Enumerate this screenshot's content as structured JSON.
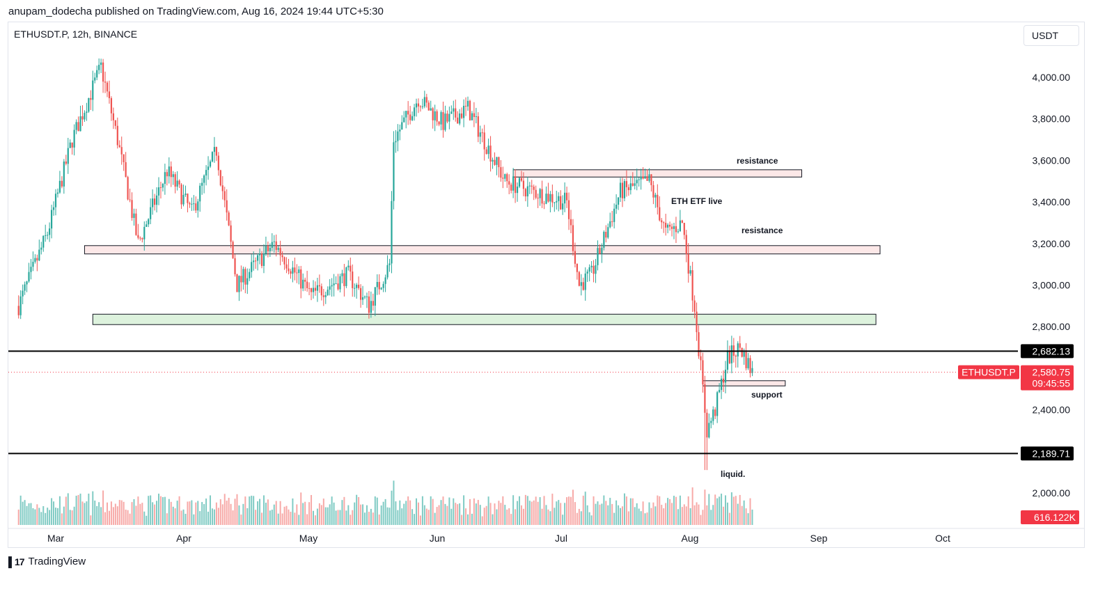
{
  "header": "anupam_dodecha published on TradingView.com, Aug 16, 2024 19:44 UTC+5:30",
  "symbol_line": "ETHUSDT.P, 12h, BINANCE",
  "currency": "USDT",
  "footer_brand": "TradingView",
  "colors": {
    "up": "#26a69a",
    "down": "#ef5350",
    "vol_up": "#80cbc4",
    "vol_down": "#f7a9a7",
    "tag_red": "#f23645"
  },
  "chart_data": {
    "type": "candlestick",
    "symbol": "ETHUSDT.P",
    "timeframe": "12h",
    "exchange": "BINANCE",
    "y_axis": {
      "ticks": [
        2000,
        2400,
        2800,
        3000,
        3200,
        3400,
        3600,
        3800,
        4000
      ],
      "tick_labels": [
        "2,000.00",
        "2,400.00",
        "2,800.00",
        "3,000.00",
        "3,200.00",
        "3,400.00",
        "3,600.00",
        "3,800.00",
        "4,000.00"
      ]
    },
    "x_axis": {
      "ticks": [
        "Mar",
        "Apr",
        "May",
        "Jun",
        "Jul",
        "Aug",
        "Sep",
        "Oct"
      ]
    },
    "series_close_anchors": [
      {
        "date": "2024-02-20",
        "close": 2900
      },
      {
        "date": "2024-02-27",
        "close": 3250
      },
      {
        "date": "2024-03-04",
        "close": 3700
      },
      {
        "date": "2024-03-11",
        "close": 4050
      },
      {
        "date": "2024-03-15",
        "close": 3700
      },
      {
        "date": "2024-03-20",
        "close": 3200
      },
      {
        "date": "2024-03-27",
        "close": 3550
      },
      {
        "date": "2024-04-02",
        "close": 3350
      },
      {
        "date": "2024-04-08",
        "close": 3650
      },
      {
        "date": "2024-04-13",
        "close": 3000
      },
      {
        "date": "2024-04-22",
        "close": 3200
      },
      {
        "date": "2024-05-01",
        "close": 2950
      },
      {
        "date": "2024-05-10",
        "close": 3050
      },
      {
        "date": "2024-05-15",
        "close": 2900
      },
      {
        "date": "2024-05-20",
        "close": 3100
      },
      {
        "date": "2024-05-21",
        "close": 3700
      },
      {
        "date": "2024-05-27",
        "close": 3900
      },
      {
        "date": "2024-06-02",
        "close": 3780
      },
      {
        "date": "2024-06-08",
        "close": 3850
      },
      {
        "date": "2024-06-17",
        "close": 3500
      },
      {
        "date": "2024-06-24",
        "close": 3450
      },
      {
        "date": "2024-07-02",
        "close": 3400
      },
      {
        "date": "2024-07-05",
        "close": 3000
      },
      {
        "date": "2024-07-08",
        "close": 3050
      },
      {
        "date": "2024-07-15",
        "close": 3450
      },
      {
        "date": "2024-07-22",
        "close": 3500
      },
      {
        "date": "2024-07-26",
        "close": 3250
      },
      {
        "date": "2024-07-30",
        "close": 3300
      },
      {
        "date": "2024-08-02",
        "close": 2900
      },
      {
        "date": "2024-08-05",
        "close": 2300
      },
      {
        "date": "2024-08-07",
        "close": 2400
      },
      {
        "date": "2024-08-10",
        "close": 2650
      },
      {
        "date": "2024-08-13",
        "close": 2700
      },
      {
        "date": "2024-08-16",
        "close": 2580.75
      }
    ],
    "low_wick": {
      "date": "2024-08-05",
      "value": 2110
    },
    "zones": [
      {
        "label": "resistance",
        "from": 3520,
        "to": 3555,
        "start": "2024-06-19",
        "end": "2024-08-28",
        "fill": "#fce8e8"
      },
      {
        "label": "resistance",
        "from": 3150,
        "to": 3190,
        "start": "2024-03-07",
        "end": "2024-09-16",
        "fill": "#fce8e8"
      },
      {
        "label": "",
        "from": 2810,
        "to": 2860,
        "start": "2024-03-09",
        "end": "2024-09-15",
        "fill": "#ddf2dd"
      },
      {
        "label": "support",
        "from": 2515,
        "to": 2540,
        "start": "2024-08-04",
        "end": "2024-08-24",
        "fill": "#fce8e8"
      }
    ],
    "levels": [
      {
        "value": 2682.13,
        "label": "2,682.13"
      },
      {
        "value": 2189.71,
        "label": "2,189.71"
      }
    ],
    "annotations": [
      {
        "text": "ETH ETF live",
        "date": "2024-07-26",
        "value": 3400
      },
      {
        "text": "liquid.",
        "date": "2024-08-07",
        "value": 2090
      }
    ],
    "last_price": {
      "symbol": "ETHUSDT.P",
      "value": 2580.75,
      "label": "2,580.75",
      "countdown": "09:45:55"
    },
    "volume_last": "616.122K"
  }
}
